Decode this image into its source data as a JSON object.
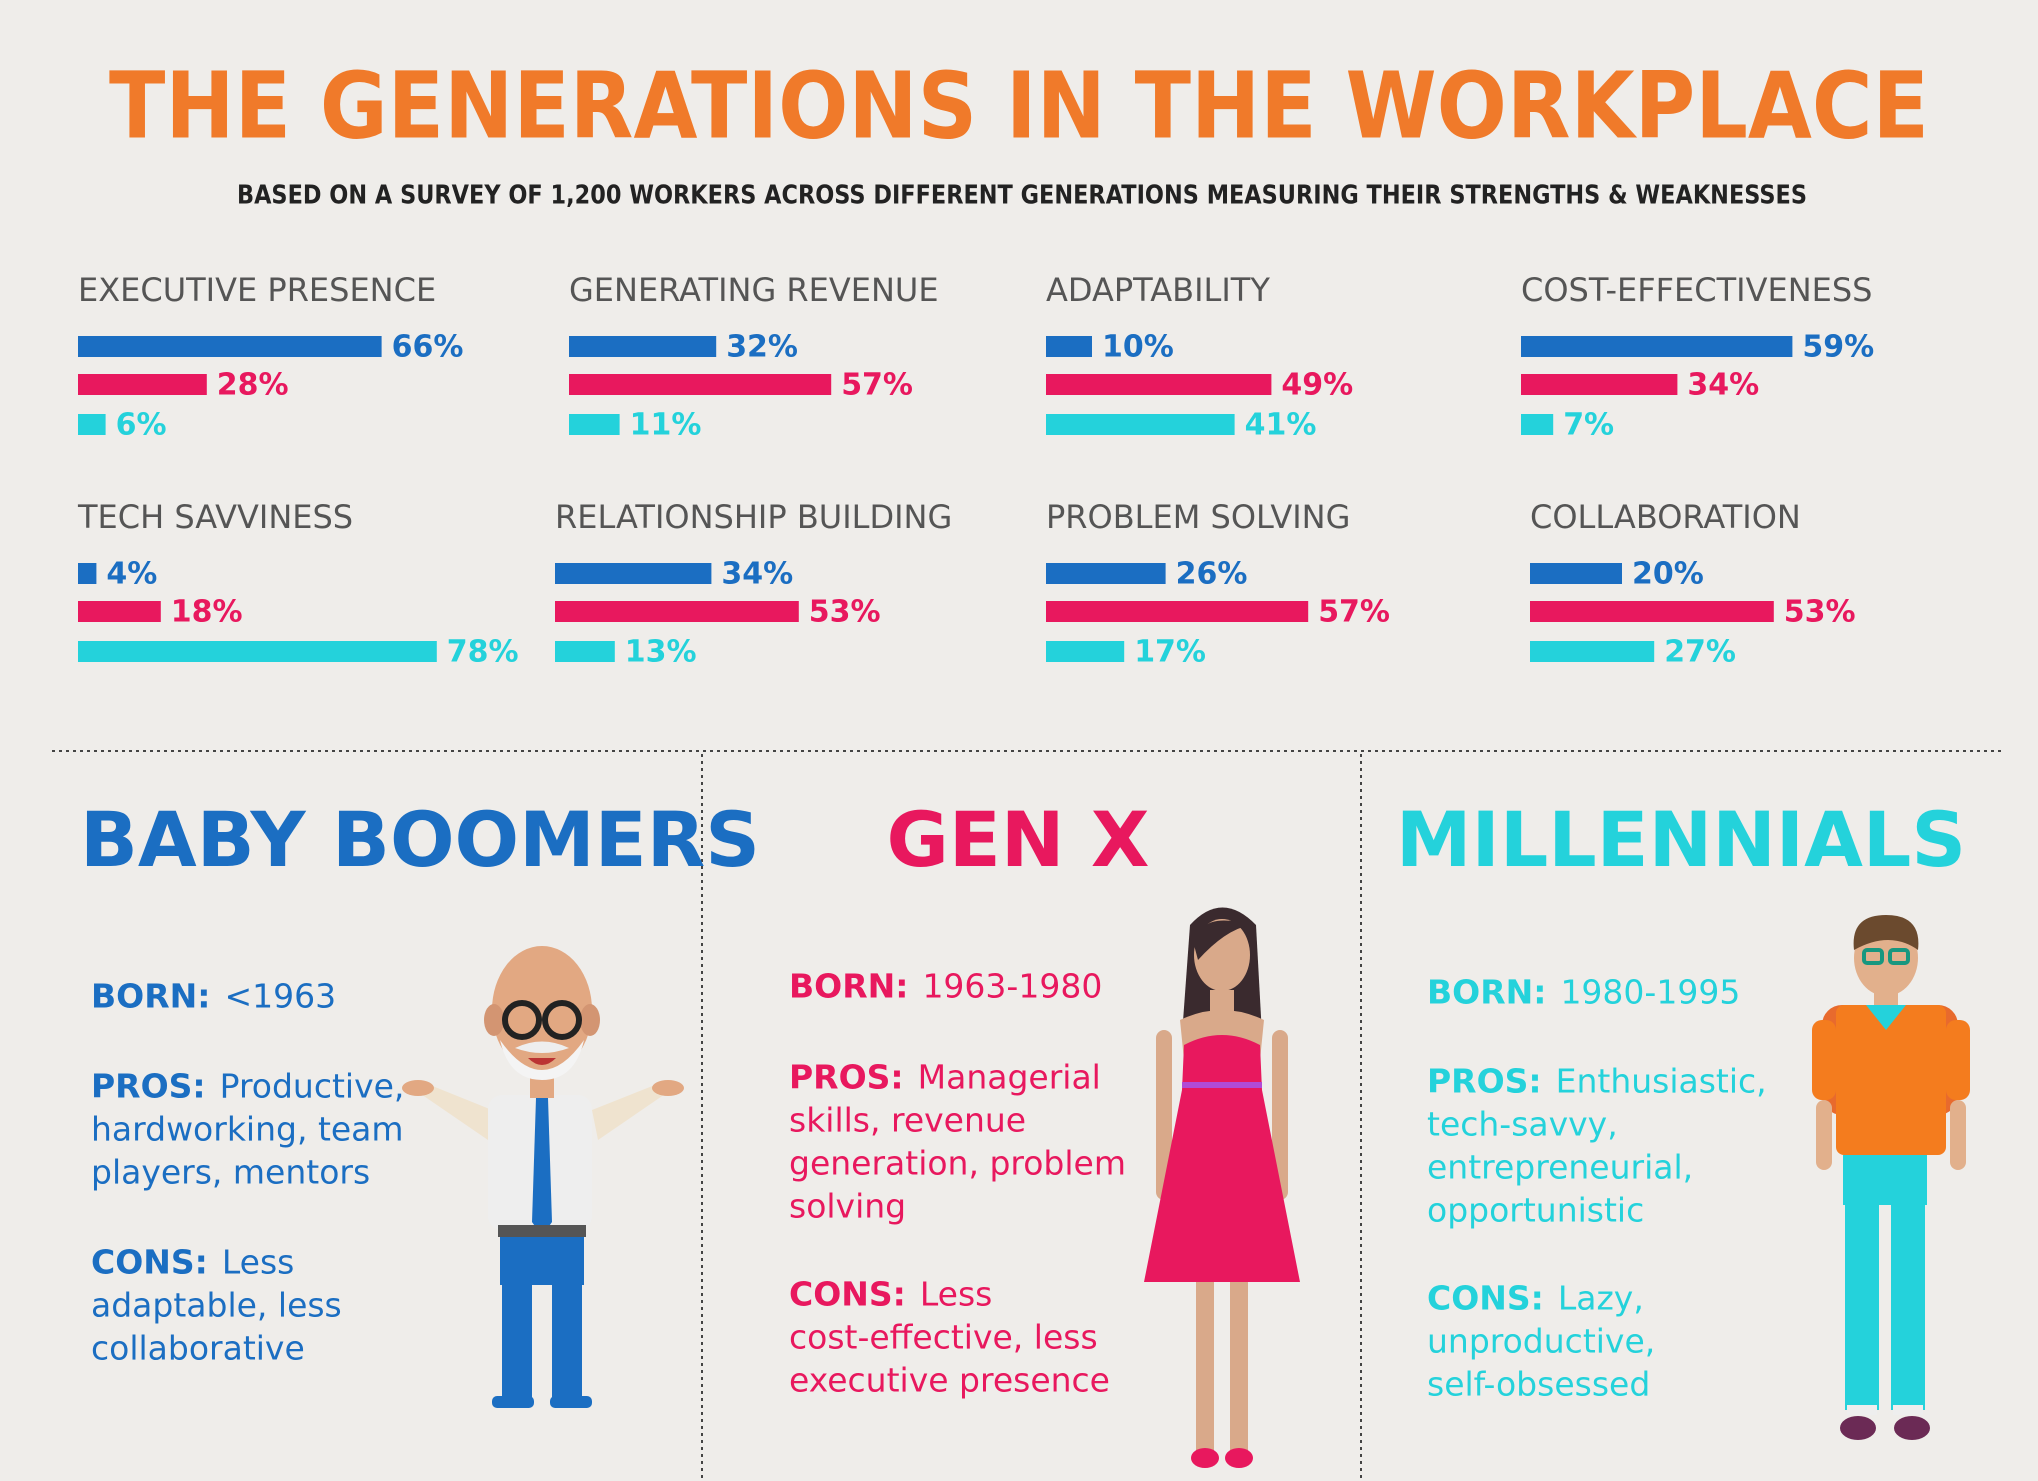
{
  "title": "THE GENERATIONS IN THE WORKPLACE",
  "subtitle": "BASED ON A SURVEY OF 1,200 WORKERS ACROSS DIFFERENT GENERATIONS MEASURING THEIR STRENGTHS & WEAKNESSES",
  "chart_data": [
    {
      "type": "bar",
      "title": "EXECUTIVE PRESENCE",
      "values": [
        66,
        28,
        6
      ],
      "value_labels": [
        "66%",
        "28%",
        "6%"
      ],
      "colors": [
        "#1b6ec2",
        "#e8185e",
        "#24d2db"
      ],
      "xlim": [
        0,
        100
      ]
    },
    {
      "type": "bar",
      "title": "GENERATING REVENUE",
      "values": [
        32,
        57,
        11
      ],
      "value_labels": [
        "32%",
        "57%",
        "11%"
      ],
      "colors": [
        "#1b6ec2",
        "#e8185e",
        "#24d2db"
      ],
      "xlim": [
        0,
        100
      ]
    },
    {
      "type": "bar",
      "title": "ADAPTABILITY",
      "values": [
        10,
        49,
        41
      ],
      "value_labels": [
        "10%",
        "49%",
        "41%"
      ],
      "colors": [
        "#1b6ec2",
        "#e8185e",
        "#24d2db"
      ],
      "xlim": [
        0,
        100
      ]
    },
    {
      "type": "bar",
      "title": "COST-EFFECTIVENESS",
      "values": [
        59,
        34,
        7
      ],
      "value_labels": [
        "59%",
        "34%",
        "7%"
      ],
      "colors": [
        "#1b6ec2",
        "#e8185e",
        "#24d2db"
      ],
      "xlim": [
        0,
        100
      ]
    },
    {
      "type": "bar",
      "title": "TECH SAVVINESS",
      "values": [
        4,
        18,
        78
      ],
      "value_labels": [
        "4%",
        "18%",
        "78%"
      ],
      "colors": [
        "#1b6ec2",
        "#e8185e",
        "#24d2db"
      ],
      "xlim": [
        0,
        100
      ]
    },
    {
      "type": "bar",
      "title": "RELATIONSHIP BUILDING",
      "values": [
        34,
        53,
        13
      ],
      "value_labels": [
        "34%",
        "53%",
        "13%"
      ],
      "colors": [
        "#1b6ec2",
        "#e8185e",
        "#24d2db"
      ],
      "xlim": [
        0,
        100
      ]
    },
    {
      "type": "bar",
      "title": "PROBLEM SOLVING",
      "values": [
        26,
        57,
        17
      ],
      "value_labels": [
        "26%",
        "57%",
        "17%"
      ],
      "colors": [
        "#1b6ec2",
        "#e8185e",
        "#24d2db"
      ],
      "xlim": [
        0,
        100
      ]
    },
    {
      "type": "bar",
      "title": "COLLABORATION",
      "values": [
        20,
        53,
        27
      ],
      "value_labels": [
        "20%",
        "53%",
        "27%"
      ],
      "colors": [
        "#1b6ec2",
        "#e8185e",
        "#24d2db"
      ],
      "xlim": [
        0,
        100
      ]
    }
  ],
  "generations": [
    {
      "name": "BABY BOOMERS",
      "color": "#1b6ec2",
      "born_label": "BORN:",
      "born": "<1963",
      "pros_label": "PROS:",
      "pros": [
        "Productive,",
        "hardworking, team",
        "players, mentors"
      ],
      "cons_label": "CONS:",
      "cons": [
        "Less",
        "adaptable, less",
        "collaborative"
      ]
    },
    {
      "name": "GEN X",
      "color": "#e8185e",
      "born_label": "BORN:",
      "born": "1963-1980",
      "pros_label": "PROS:",
      "pros": [
        "Managerial",
        "skills, revenue",
        "generation, problem",
        "solving"
      ],
      "cons_label": "CONS:",
      "cons": [
        "Less",
        "cost-effective, less",
        "executive presence"
      ]
    },
    {
      "name": "MILLENNIALS",
      "color": "#24d2db",
      "born_label": "BORN:",
      "born": "1980-1995",
      "pros_label": "PROS:",
      "pros": [
        "Enthusiastic,",
        "tech-savvy,",
        "entrepreneurial,",
        "opportunistic"
      ],
      "cons_label": "CONS:",
      "cons": [
        "Lazy,",
        "unproductive,",
        "self-obsessed"
      ]
    }
  ]
}
